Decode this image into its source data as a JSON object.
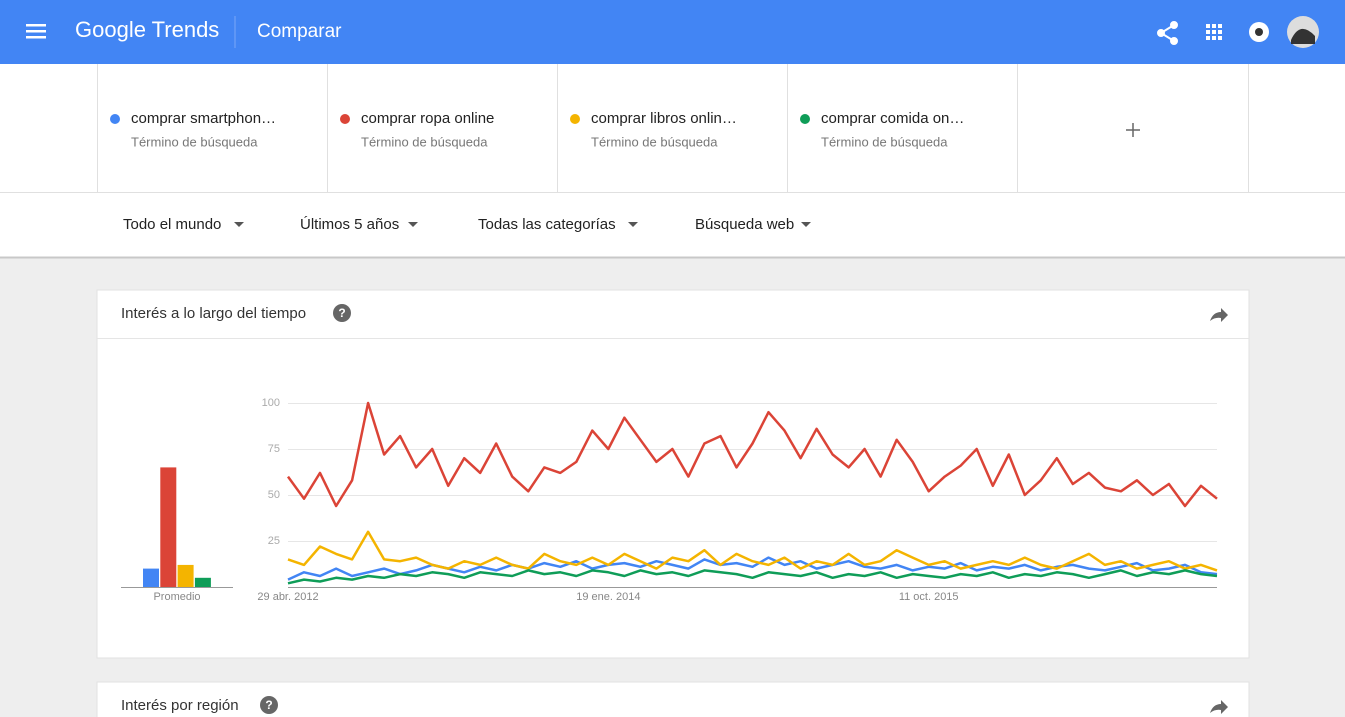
{
  "header": {
    "logo": "Google Trends",
    "page": "Comparar"
  },
  "term_types": [
    "Término de búsqueda",
    "Término de búsqueda",
    "Término de búsqueda",
    "Término de búsqueda"
  ],
  "filters": [
    "Todo el mundo",
    "Últimos 5 años",
    "Todas las categorías",
    "Búsqueda web"
  ],
  "cards": [
    {
      "title": "Interés a lo largo del tiempo"
    },
    {
      "title": "Interés por región"
    }
  ],
  "chart_data": [
    {
      "type": "bar",
      "xlabel": "Promedio",
      "values": [
        10,
        65,
        12,
        5
      ],
      "colors": [
        "#4285f4",
        "#db4437",
        "#f4b400",
        "#0f9d58"
      ],
      "ylim": [
        0,
        100
      ]
    },
    {
      "type": "line",
      "categories": [
        "29 abr. 2012",
        null,
        null,
        null,
        null,
        null,
        null,
        null,
        null,
        null,
        null,
        null,
        null,
        null,
        null,
        null,
        null,
        null,
        null,
        null,
        "19 ene. 2014",
        null,
        null,
        null,
        null,
        null,
        null,
        null,
        null,
        null,
        null,
        null,
        null,
        null,
        null,
        null,
        null,
        null,
        null,
        null,
        "11 oct. 2015",
        null,
        null,
        null,
        null,
        null,
        null,
        null,
        null,
        null,
        null,
        null,
        null,
        null,
        null,
        null,
        null,
        null,
        null
      ],
      "series": [
        {
          "name": "comprar smartphon…",
          "color": "#4285f4",
          "values": [
            4,
            8,
            6,
            10,
            6,
            8,
            10,
            7,
            9,
            12,
            10,
            8,
            11,
            9,
            12,
            10,
            13,
            11,
            14,
            10,
            12,
            13,
            11,
            14,
            12,
            10,
            15,
            12,
            13,
            11,
            16,
            12,
            14,
            10,
            12,
            14,
            11,
            10,
            12,
            9,
            11,
            10,
            13,
            9,
            11,
            10,
            12,
            9,
            11,
            12,
            10,
            9,
            11,
            13,
            9,
            10,
            12,
            8,
            7
          ]
        },
        {
          "name": "comprar ropa online",
          "color": "#db4437",
          "values": [
            60,
            48,
            62,
            44,
            58,
            100,
            72,
            82,
            65,
            75,
            55,
            70,
            62,
            78,
            60,
            52,
            65,
            62,
            68,
            85,
            75,
            92,
            80,
            68,
            75,
            60,
            78,
            82,
            65,
            78,
            95,
            85,
            70,
            86,
            72,
            65,
            75,
            60,
            80,
            68,
            52,
            60,
            66,
            75,
            55,
            72,
            50,
            58,
            70,
            56,
            62,
            54,
            52,
            58,
            50,
            56,
            44,
            55,
            48
          ]
        },
        {
          "name": "comprar libros onlin…",
          "color": "#f4b400",
          "values": [
            15,
            12,
            22,
            18,
            15,
            30,
            15,
            14,
            16,
            12,
            10,
            14,
            12,
            16,
            12,
            10,
            18,
            14,
            12,
            16,
            12,
            18,
            14,
            10,
            16,
            14,
            20,
            12,
            18,
            14,
            12,
            16,
            10,
            14,
            12,
            18,
            12,
            14,
            20,
            16,
            12,
            14,
            10,
            12,
            14,
            12,
            16,
            12,
            10,
            14,
            18,
            12,
            14,
            10,
            12,
            14,
            10,
            12,
            9
          ]
        },
        {
          "name": "comprar comida on…",
          "color": "#0f9d58",
          "values": [
            2,
            4,
            3,
            5,
            4,
            6,
            5,
            7,
            6,
            8,
            7,
            5,
            8,
            7,
            6,
            9,
            7,
            8,
            6,
            9,
            8,
            6,
            9,
            7,
            8,
            6,
            9,
            8,
            7,
            5,
            8,
            7,
            6,
            8,
            5,
            7,
            6,
            8,
            5,
            7,
            6,
            5,
            7,
            6,
            8,
            5,
            7,
            6,
            8,
            7,
            5,
            7,
            9,
            6,
            8,
            7,
            9,
            7,
            6
          ]
        }
      ],
      "ylim": [
        0,
        100
      ],
      "yticks": [
        25,
        50,
        75,
        100
      ],
      "grid": true
    }
  ]
}
